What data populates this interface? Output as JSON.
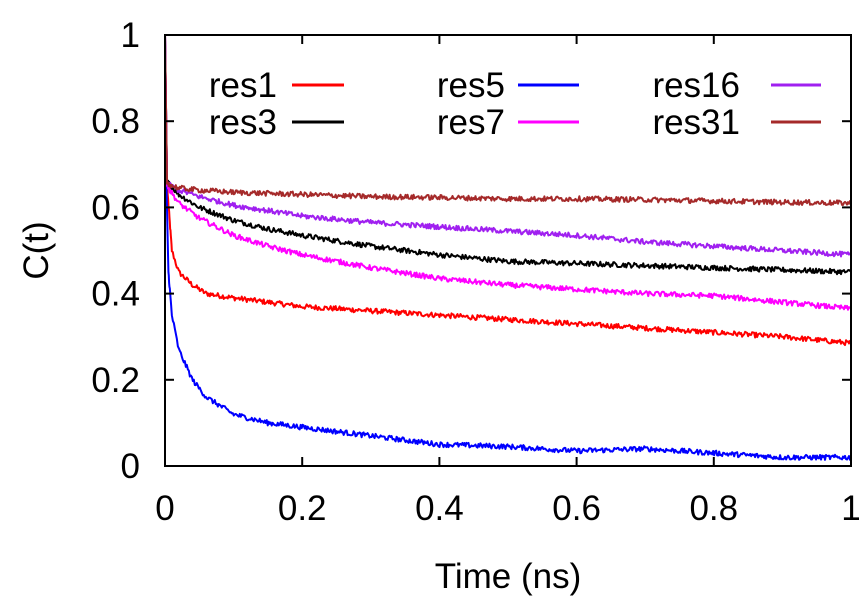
{
  "chart_data": {
    "type": "line",
    "title": "",
    "xlabel": "Time (ns)",
    "ylabel": "C(t)",
    "xlim": [
      0,
      1
    ],
    "ylim": [
      0,
      1
    ],
    "grid": false,
    "legend_position": "top",
    "legend_columns": 3,
    "xticks": [
      {
        "value": 0,
        "label": "0"
      },
      {
        "value": 0.2,
        "label": "0.2"
      },
      {
        "value": 0.4,
        "label": "0.4"
      },
      {
        "value": 0.6,
        "label": "0.6"
      },
      {
        "value": 0.8,
        "label": "0.8"
      },
      {
        "value": 1,
        "label": "1"
      }
    ],
    "yticks": [
      {
        "value": 0,
        "label": "0"
      },
      {
        "value": 0.2,
        "label": "0.2"
      },
      {
        "value": 0.4,
        "label": "0.4"
      },
      {
        "value": 0.6,
        "label": "0.6"
      },
      {
        "value": 0.8,
        "label": "0.8"
      },
      {
        "value": 1,
        "label": "1"
      }
    ],
    "series": [
      {
        "name": "res1",
        "color": "#ff0000",
        "x": [
          0,
          0.003,
          0.01,
          0.02,
          0.04,
          0.06,
          0.1,
          0.15,
          0.2,
          0.3,
          0.4,
          0.5,
          0.6,
          0.7,
          0.8,
          0.9,
          1.0
        ],
        "y": [
          1.0,
          0.65,
          0.5,
          0.45,
          0.42,
          0.4,
          0.39,
          0.38,
          0.37,
          0.36,
          0.35,
          0.34,
          0.33,
          0.32,
          0.31,
          0.3,
          0.285
        ]
      },
      {
        "name": "res3",
        "color": "#000000",
        "x": [
          0,
          0.003,
          0.02,
          0.05,
          0.1,
          0.15,
          0.2,
          0.3,
          0.4,
          0.5,
          0.6,
          0.7,
          0.8,
          0.9,
          1.0
        ],
        "y": [
          1.0,
          0.66,
          0.63,
          0.6,
          0.57,
          0.55,
          0.535,
          0.51,
          0.49,
          0.475,
          0.47,
          0.465,
          0.46,
          0.455,
          0.45
        ]
      },
      {
        "name": "res5",
        "color": "#0000ff",
        "x": [
          0,
          0.002,
          0.005,
          0.01,
          0.02,
          0.04,
          0.06,
          0.1,
          0.15,
          0.2,
          0.3,
          0.4,
          0.5,
          0.6,
          0.7,
          0.8,
          0.9,
          1.0
        ],
        "y": [
          1.0,
          0.66,
          0.45,
          0.35,
          0.27,
          0.2,
          0.16,
          0.12,
          0.1,
          0.09,
          0.07,
          0.05,
          0.045,
          0.035,
          0.04,
          0.03,
          0.02,
          0.02
        ]
      },
      {
        "name": "res7",
        "color": "#ff00ff",
        "x": [
          0,
          0.003,
          0.02,
          0.05,
          0.1,
          0.15,
          0.2,
          0.3,
          0.4,
          0.5,
          0.6,
          0.7,
          0.8,
          0.9,
          1.0
        ],
        "y": [
          1.0,
          0.65,
          0.61,
          0.575,
          0.535,
          0.51,
          0.49,
          0.46,
          0.435,
          0.42,
          0.41,
          0.4,
          0.395,
          0.38,
          0.365
        ]
      },
      {
        "name": "res16",
        "color": "#a020f0",
        "x": [
          0,
          0.003,
          0.02,
          0.05,
          0.1,
          0.2,
          0.3,
          0.4,
          0.5,
          0.6,
          0.7,
          0.8,
          0.9,
          1.0
        ],
        "y": [
          1.0,
          0.655,
          0.64,
          0.625,
          0.605,
          0.58,
          0.565,
          0.555,
          0.545,
          0.535,
          0.52,
          0.51,
          0.5,
          0.49
        ]
      },
      {
        "name": "res31",
        "color": "#a52a2a",
        "x": [
          0,
          0.003,
          0.02,
          0.05,
          0.1,
          0.2,
          0.3,
          0.4,
          0.5,
          0.6,
          0.7,
          0.8,
          0.9,
          1.0
        ],
        "y": [
          1.0,
          0.655,
          0.645,
          0.64,
          0.635,
          0.63,
          0.625,
          0.623,
          0.62,
          0.62,
          0.618,
          0.615,
          0.612,
          0.61
        ]
      }
    ]
  }
}
